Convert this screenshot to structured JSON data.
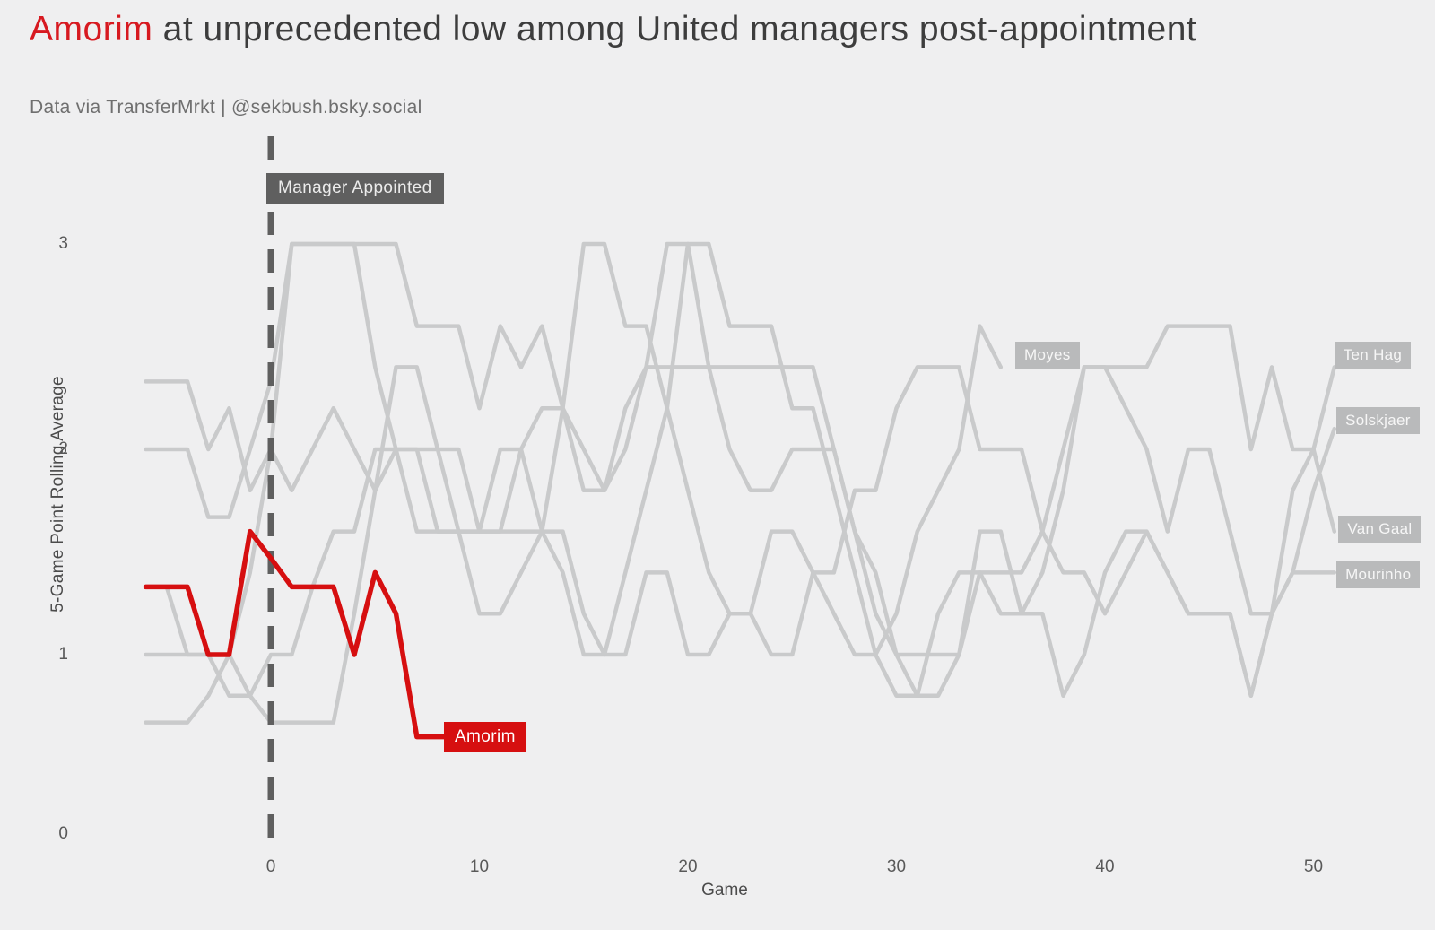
{
  "header": {
    "title_highlight": "Amorim",
    "title_rest": " at unprecedented low among United managers post-appointment",
    "subtitle": "Data via TransferMrkt | @sekbush.bsky.social",
    "highlight_color": "#d71920",
    "title_color": "#3d3d3d"
  },
  "chart_data": {
    "type": "line",
    "title": "Amorim at unprecedented low among United managers post-appointment",
    "subtitle": "Data via TransferMrkt | @sekbush.bsky.social",
    "xlabel": "Game",
    "ylabel": "5-Game Point Rolling Average",
    "x_ticks": [
      0,
      10,
      20,
      30,
      40,
      50
    ],
    "y_ticks": [
      0,
      1,
      2,
      3
    ],
    "xlim": [
      -6.3,
      52.6
    ],
    "ylim": [
      0,
      3.3
    ],
    "grid": false,
    "legend_position": "end-of-line-labels",
    "annotation": {
      "label": "Manager Appointed",
      "x": 0,
      "style": "dashed-vertical-line"
    },
    "colors": {
      "highlight": "#d60f10",
      "muted": "#c9cacb",
      "annotation": "#5f5f5f",
      "label_box": "#b9babb"
    },
    "series": [
      {
        "name": "Moyes",
        "muted": true,
        "label_at": {
          "x": 35.7,
          "y": 2.46
        },
        "points": [
          [
            -6,
            2.33
          ],
          [
            -5,
            2.33
          ],
          [
            -4,
            2.33
          ],
          [
            -3,
            2.0
          ],
          [
            -2,
            2.2
          ],
          [
            -1,
            1.8
          ],
          [
            0,
            2.0
          ],
          [
            1,
            1.8
          ],
          [
            2,
            2.0
          ],
          [
            3,
            2.2
          ],
          [
            4,
            2.0
          ],
          [
            5,
            1.8
          ],
          [
            6,
            2.0
          ],
          [
            7,
            2.0
          ],
          [
            8,
            1.6
          ],
          [
            9,
            1.6
          ],
          [
            10,
            1.2
          ],
          [
            11,
            1.2
          ],
          [
            12,
            1.4
          ],
          [
            13,
            1.6
          ],
          [
            14,
            2.2
          ],
          [
            15,
            3.0
          ],
          [
            16,
            3.0
          ],
          [
            17,
            2.6
          ],
          [
            18,
            2.6
          ],
          [
            19,
            2.2
          ],
          [
            20,
            1.8
          ],
          [
            21,
            1.4
          ],
          [
            22,
            1.2
          ],
          [
            23,
            1.2
          ],
          [
            24,
            1.6
          ],
          [
            25,
            1.6
          ],
          [
            26,
            1.4
          ],
          [
            27,
            1.2
          ],
          [
            28,
            1.0
          ],
          [
            29,
            1.0
          ],
          [
            30,
            1.2
          ],
          [
            31,
            1.6
          ],
          [
            32,
            1.8
          ],
          [
            33,
            2.0
          ],
          [
            34,
            2.6
          ],
          [
            35,
            2.4
          ]
        ]
      },
      {
        "name": "Ten Hag",
        "muted": true,
        "label_at": {
          "x": 51.0,
          "y": 2.46
        },
        "points": [
          [
            -6,
            1.33
          ],
          [
            -5,
            1.33
          ],
          [
            -4,
            1.0
          ],
          [
            -3,
            1.0
          ],
          [
            -2,
            1.0
          ],
          [
            -1,
            0.8
          ],
          [
            0,
            0.67
          ],
          [
            1,
            0.67
          ],
          [
            2,
            0.67
          ],
          [
            3,
            0.67
          ],
          [
            4,
            1.2
          ],
          [
            5,
            1.8
          ],
          [
            6,
            2.4
          ],
          [
            7,
            2.4
          ],
          [
            8,
            2.0
          ],
          [
            9,
            2.0
          ],
          [
            10,
            1.6
          ],
          [
            11,
            1.6
          ],
          [
            12,
            2.0
          ],
          [
            13,
            2.2
          ],
          [
            14,
            2.2
          ],
          [
            15,
            1.8
          ],
          [
            16,
            1.8
          ],
          [
            17,
            2.2
          ],
          [
            18,
            2.4
          ],
          [
            19,
            3.0
          ],
          [
            20,
            3.0
          ],
          [
            21,
            2.4
          ],
          [
            22,
            2.0
          ],
          [
            23,
            1.8
          ],
          [
            24,
            1.8
          ],
          [
            25,
            2.0
          ],
          [
            26,
            2.0
          ],
          [
            27,
            2.0
          ],
          [
            28,
            1.6
          ],
          [
            29,
            1.2
          ],
          [
            30,
            1.0
          ],
          [
            31,
            1.0
          ],
          [
            32,
            1.0
          ],
          [
            33,
            1.0
          ],
          [
            34,
            1.6
          ],
          [
            35,
            1.6
          ],
          [
            36,
            1.2
          ],
          [
            37,
            1.2
          ],
          [
            38,
            0.8
          ],
          [
            39,
            1.0
          ],
          [
            40,
            1.4
          ],
          [
            41,
            1.6
          ],
          [
            42,
            1.6
          ],
          [
            43,
            1.4
          ],
          [
            44,
            1.2
          ],
          [
            45,
            1.2
          ],
          [
            46,
            1.2
          ],
          [
            47,
            0.8
          ],
          [
            48,
            1.2
          ],
          [
            49,
            1.8
          ],
          [
            50,
            2.0
          ],
          [
            51,
            2.4
          ]
        ]
      },
      {
        "name": "Solskjaer",
        "muted": true,
        "label_at": {
          "x": 51.1,
          "y": 2.14
        },
        "points": [
          [
            -6,
            0.67
          ],
          [
            -5,
            0.67
          ],
          [
            -4,
            0.67
          ],
          [
            -3,
            0.8
          ],
          [
            -2,
            1.0
          ],
          [
            -1,
            1.4
          ],
          [
            0,
            2.0
          ],
          [
            1,
            3.0
          ],
          [
            2,
            3.0
          ],
          [
            3,
            3.0
          ],
          [
            4,
            3.0
          ],
          [
            5,
            3.0
          ],
          [
            6,
            3.0
          ],
          [
            7,
            2.6
          ],
          [
            8,
            2.6
          ],
          [
            9,
            2.6
          ],
          [
            10,
            2.2
          ],
          [
            11,
            2.6
          ],
          [
            12,
            2.4
          ],
          [
            13,
            2.6
          ],
          [
            14,
            2.2
          ],
          [
            15,
            2.0
          ],
          [
            16,
            1.8
          ],
          [
            17,
            2.0
          ],
          [
            18,
            2.4
          ],
          [
            19,
            2.4
          ],
          [
            20,
            2.4
          ],
          [
            21,
            2.4
          ],
          [
            22,
            2.4
          ],
          [
            23,
            2.4
          ],
          [
            24,
            2.4
          ],
          [
            25,
            2.4
          ],
          [
            26,
            2.4
          ],
          [
            27,
            2.0
          ],
          [
            28,
            1.6
          ],
          [
            29,
            1.4
          ],
          [
            30,
            1.0
          ],
          [
            31,
            0.8
          ],
          [
            32,
            0.8
          ],
          [
            33,
            1.0
          ],
          [
            34,
            1.4
          ],
          [
            35,
            1.4
          ],
          [
            36,
            1.4
          ],
          [
            37,
            1.6
          ],
          [
            38,
            2.0
          ],
          [
            39,
            2.4
          ],
          [
            40,
            2.4
          ],
          [
            41,
            2.2
          ],
          [
            42,
            2.0
          ],
          [
            43,
            1.6
          ],
          [
            44,
            2.0
          ],
          [
            45,
            2.0
          ],
          [
            46,
            1.6
          ],
          [
            47,
            1.2
          ],
          [
            48,
            1.2
          ],
          [
            49,
            1.4
          ],
          [
            50,
            1.8
          ],
          [
            51,
            2.1
          ]
        ]
      },
      {
        "name": "Van Gaal",
        "muted": true,
        "label_at": {
          "x": 51.2,
          "y": 1.61
        },
        "points": [
          [
            -6,
            1.0
          ],
          [
            -5,
            1.0
          ],
          [
            -4,
            1.0
          ],
          [
            -3,
            1.0
          ],
          [
            -2,
            0.8
          ],
          [
            -1,
            0.8
          ],
          [
            0,
            1.0
          ],
          [
            1,
            1.0
          ],
          [
            2,
            1.33
          ],
          [
            3,
            1.6
          ],
          [
            4,
            1.6
          ],
          [
            5,
            2.0
          ],
          [
            6,
            2.0
          ],
          [
            7,
            1.6
          ],
          [
            8,
            1.6
          ],
          [
            9,
            1.6
          ],
          [
            10,
            1.6
          ],
          [
            11,
            1.6
          ],
          [
            12,
            1.6
          ],
          [
            13,
            1.6
          ],
          [
            14,
            1.4
          ],
          [
            15,
            1.0
          ],
          [
            16,
            1.0
          ],
          [
            17,
            1.4
          ],
          [
            18,
            1.8
          ],
          [
            19,
            2.2
          ],
          [
            20,
            3.0
          ],
          [
            21,
            3.0
          ],
          [
            22,
            2.6
          ],
          [
            23,
            2.6
          ],
          [
            24,
            2.6
          ],
          [
            25,
            2.2
          ],
          [
            26,
            2.2
          ],
          [
            27,
            1.8
          ],
          [
            28,
            1.4
          ],
          [
            29,
            1.0
          ],
          [
            30,
            0.8
          ],
          [
            31,
            0.8
          ],
          [
            32,
            1.2
          ],
          [
            33,
            1.4
          ],
          [
            34,
            1.4
          ],
          [
            35,
            1.2
          ],
          [
            36,
            1.2
          ],
          [
            37,
            1.4
          ],
          [
            38,
            1.8
          ],
          [
            39,
            2.4
          ],
          [
            40,
            2.4
          ],
          [
            41,
            2.4
          ],
          [
            42,
            2.4
          ],
          [
            43,
            2.6
          ],
          [
            44,
            2.6
          ],
          [
            45,
            2.6
          ],
          [
            46,
            2.6
          ],
          [
            47,
            2.0
          ],
          [
            48,
            2.4
          ],
          [
            49,
            2.0
          ],
          [
            50,
            2.0
          ],
          [
            51,
            1.6
          ]
        ]
      },
      {
        "name": "Mourinho",
        "muted": true,
        "label_at": {
          "x": 51.1,
          "y": 1.39
        },
        "points": [
          [
            -6,
            2.0
          ],
          [
            -5,
            2.0
          ],
          [
            -4,
            2.0
          ],
          [
            -3,
            1.67
          ],
          [
            -2,
            1.67
          ],
          [
            -1,
            2.0
          ],
          [
            0,
            2.33
          ],
          [
            1,
            3.0
          ],
          [
            2,
            3.0
          ],
          [
            3,
            3.0
          ],
          [
            4,
            3.0
          ],
          [
            5,
            2.4
          ],
          [
            6,
            2.0
          ],
          [
            7,
            2.0
          ],
          [
            8,
            2.0
          ],
          [
            9,
            1.6
          ],
          [
            10,
            1.6
          ],
          [
            11,
            2.0
          ],
          [
            12,
            2.0
          ],
          [
            13,
            1.6
          ],
          [
            14,
            1.6
          ],
          [
            15,
            1.2
          ],
          [
            16,
            1.0
          ],
          [
            17,
            1.0
          ],
          [
            18,
            1.4
          ],
          [
            19,
            1.4
          ],
          [
            20,
            1.0
          ],
          [
            21,
            1.0
          ],
          [
            22,
            1.2
          ],
          [
            23,
            1.2
          ],
          [
            24,
            1.0
          ],
          [
            25,
            1.0
          ],
          [
            26,
            1.4
          ],
          [
            27,
            1.4
          ],
          [
            28,
            1.8
          ],
          [
            29,
            1.8
          ],
          [
            30,
            2.2
          ],
          [
            31,
            2.4
          ],
          [
            32,
            2.4
          ],
          [
            33,
            2.4
          ],
          [
            34,
            2.0
          ],
          [
            35,
            2.0
          ],
          [
            36,
            2.0
          ],
          [
            37,
            1.6
          ],
          [
            38,
            1.4
          ],
          [
            39,
            1.4
          ],
          [
            40,
            1.2
          ],
          [
            41,
            1.4
          ],
          [
            42,
            1.6
          ],
          [
            43,
            1.4
          ],
          [
            44,
            1.2
          ],
          [
            45,
            1.2
          ],
          [
            46,
            1.2
          ],
          [
            47,
            0.8
          ],
          [
            48,
            1.2
          ],
          [
            49,
            1.4
          ],
          [
            50,
            1.4
          ],
          [
            51,
            1.4
          ]
        ]
      },
      {
        "name": "Amorim",
        "muted": false,
        "label_at": {
          "x": 8.3,
          "y": 0.6
        },
        "points": [
          [
            -6,
            1.33
          ],
          [
            -5,
            1.33
          ],
          [
            -4,
            1.33
          ],
          [
            -3,
            1.0
          ],
          [
            -2,
            1.0
          ],
          [
            -1,
            1.6
          ],
          [
            0,
            1.47
          ],
          [
            1,
            1.33
          ],
          [
            2,
            1.33
          ],
          [
            3,
            1.33
          ],
          [
            4,
            1.0
          ],
          [
            5,
            1.4
          ],
          [
            6,
            1.2
          ],
          [
            7,
            0.6
          ],
          [
            8,
            0.6
          ],
          [
            8.5,
            0.6
          ]
        ]
      }
    ]
  }
}
